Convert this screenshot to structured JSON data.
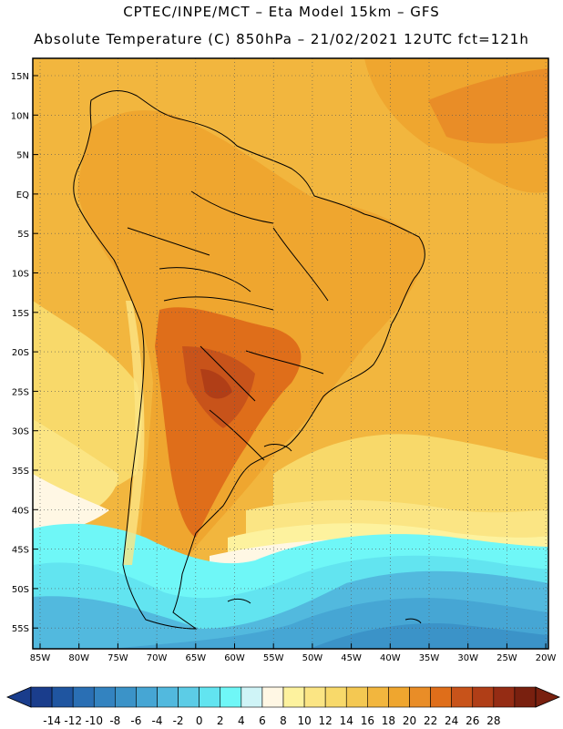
{
  "header": {
    "line1": "CPTEC/INPE/MCT –  Eta Model 15km – GFS",
    "line2": "Absolute Temperature (C) 850hPa – 21/02/2021 12UTC fct=121h"
  },
  "map": {
    "lat_ticks": [
      "15N",
      "10N",
      "5N",
      "EQ",
      "5S",
      "10S",
      "15S",
      "20S",
      "25S",
      "30S",
      "35S",
      "40S",
      "45S",
      "50S",
      "55S"
    ],
    "lon_ticks": [
      "85W",
      "80W",
      "75W",
      "70W",
      "65W",
      "60W",
      "55W",
      "50W",
      "45W",
      "40W",
      "35W",
      "30W",
      "25W",
      "20W"
    ],
    "legend_labels": [
      "-14",
      "-12",
      "-10",
      "-8",
      "-6",
      "-4",
      "-2",
      "0",
      "2",
      "4",
      "6",
      "8",
      "10",
      "12",
      "14",
      "16",
      "18",
      "20",
      "22",
      "24",
      "26",
      "28"
    ],
    "palette": [
      "#1a3d8c",
      "#1f55a0",
      "#2a6fb4",
      "#3383c0",
      "#3b93c8",
      "#46a6d4",
      "#52b9de",
      "#5ccce6",
      "#62e4f0",
      "#6ff7f7",
      "#cff4f7",
      "#fff7e4",
      "#fdf29e",
      "#fbe584",
      "#f8d96a",
      "#f4c852",
      "#f2b63e",
      "#efa62f",
      "#e98d27",
      "#df6e1a",
      "#c8531a",
      "#b03e17",
      "#952c14",
      "#79200f"
    ],
    "colors": {
      "ocean": "#f2b63e",
      "border": "#000000",
      "grid": "#555555"
    }
  }
}
